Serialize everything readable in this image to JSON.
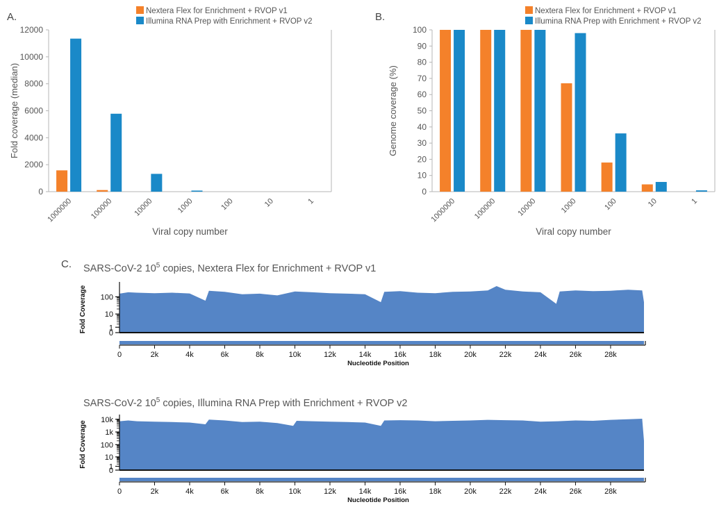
{
  "panels": {
    "a_letter": "A.",
    "b_letter": "B.",
    "c_letter": "C."
  },
  "colors": {
    "v1": "#f4812a",
    "v2": "#1a89c8",
    "coverage": "#5585c6",
    "axis": "#b5b5b5"
  },
  "chart_data": [
    {
      "id": "A",
      "type": "bar",
      "ylabel": "Fold coverage (median)",
      "xlabel": "Viral copy number",
      "categories": [
        "1000000",
        "100000",
        "10000",
        "1000",
        "100",
        "10",
        "1"
      ],
      "ylim": [
        0,
        12000
      ],
      "yticks": [
        "0",
        "2000",
        "4000",
        "6000",
        "8000",
        "10000",
        "12000"
      ],
      "legend_position": "top",
      "grid": false,
      "series": [
        {
          "name": "Nextera Flex for Enrichment + RVOP v1",
          "color": "#f4812a",
          "values": [
            1580,
            120,
            0,
            0,
            0,
            0,
            0
          ]
        },
        {
          "name": "Illumina RNA Prep with Enrichment + RVOP v2",
          "color": "#1a89c8",
          "values": [
            11350,
            5780,
            1320,
            80,
            0,
            0,
            0
          ]
        }
      ]
    },
    {
      "id": "B",
      "type": "bar",
      "ylabel": "Genome coverage (%)",
      "xlabel": "Viral copy number",
      "categories": [
        "1000000",
        "100000",
        "10000",
        "1000",
        "100",
        "10",
        "1"
      ],
      "ylim": [
        0,
        100
      ],
      "yticks": [
        "0",
        "10",
        "20",
        "30",
        "40",
        "50",
        "60",
        "70",
        "80",
        "90",
        "100"
      ],
      "legend_position": "top-right",
      "grid": false,
      "series": [
        {
          "name": "Nextera Flex for Enrichment + RVOP v1",
          "color": "#f4812a",
          "values": [
            100,
            100,
            100,
            67,
            18,
            4.5,
            0
          ]
        },
        {
          "name": "Illumina RNA Prep with Enrichment + RVOP v2",
          "color": "#1a89c8",
          "values": [
            100,
            100,
            100,
            98,
            36,
            6,
            0.8
          ]
        }
      ]
    },
    {
      "id": "C1",
      "type": "area",
      "title_prefix": "SARS-CoV-2 10",
      "title_sup": "5",
      "title_suffix": " copies, Nextera Flex for Enrichment + RVOP v1",
      "ylabel": "Fold Coverage",
      "xlabel": "Nucleotide Position",
      "yscale": "log",
      "yticks": [
        "0",
        "1",
        "10",
        "100"
      ],
      "xlim": [
        0,
        29903
      ],
      "xticks": [
        "0",
        "2k",
        "4k",
        "6k",
        "8k",
        "10k",
        "12k",
        "14k",
        "16k",
        "18k",
        "20k",
        "22k",
        "24k",
        "26k",
        "28k"
      ],
      "x": [
        0,
        500,
        1000,
        2000,
        3000,
        4000,
        4900,
        5100,
        6000,
        7000,
        8000,
        9000,
        10000,
        11000,
        12000,
        13000,
        14000,
        14900,
        15100,
        16000,
        17000,
        18000,
        19000,
        20000,
        21000,
        21500,
        22000,
        23000,
        24000,
        24900,
        25100,
        26000,
        27000,
        28000,
        29000,
        29800,
        29903
      ],
      "y": [
        150,
        180,
        170,
        160,
        170,
        155,
        60,
        220,
        190,
        140,
        150,
        120,
        200,
        180,
        160,
        150,
        140,
        50,
        190,
        210,
        170,
        160,
        190,
        200,
        230,
        400,
        250,
        200,
        180,
        40,
        200,
        230,
        210,
        220,
        250,
        230,
        50
      ]
    },
    {
      "id": "C2",
      "type": "area",
      "title_prefix": "SARS-CoV-2 10",
      "title_sup": "5",
      "title_suffix": " copies, Illumina RNA Prep with Enrichment + RVOP v2",
      "ylabel": "Fold Coverage",
      "xlabel": "Nucleotide Position",
      "yscale": "log",
      "yticks": [
        "0",
        "1",
        "10",
        "100",
        "1k",
        "10k"
      ],
      "xlim": [
        0,
        29903
      ],
      "xticks": [
        "0",
        "2k",
        "4k",
        "6k",
        "8k",
        "10k",
        "12k",
        "14k",
        "16k",
        "18k",
        "20k",
        "22k",
        "24k",
        "26k",
        "28k"
      ],
      "x": [
        0,
        500,
        1000,
        2000,
        3000,
        4000,
        4900,
        5100,
        6000,
        7000,
        8000,
        9000,
        9900,
        10100,
        11000,
        12000,
        13000,
        14000,
        14900,
        15100,
        16000,
        17000,
        18000,
        19000,
        20000,
        21000,
        22000,
        23000,
        24000,
        25000,
        26000,
        27000,
        28000,
        29000,
        29800,
        29903
      ],
      "y": [
        7000,
        8000,
        7000,
        6500,
        6000,
        5500,
        4000,
        9500,
        8000,
        6000,
        6500,
        5000,
        3000,
        7500,
        7000,
        6500,
        6000,
        5500,
        3000,
        8000,
        8500,
        8000,
        7000,
        7500,
        8000,
        9000,
        8500,
        8000,
        6500,
        7000,
        8000,
        7500,
        9000,
        10000,
        11000,
        200
      ]
    }
  ]
}
